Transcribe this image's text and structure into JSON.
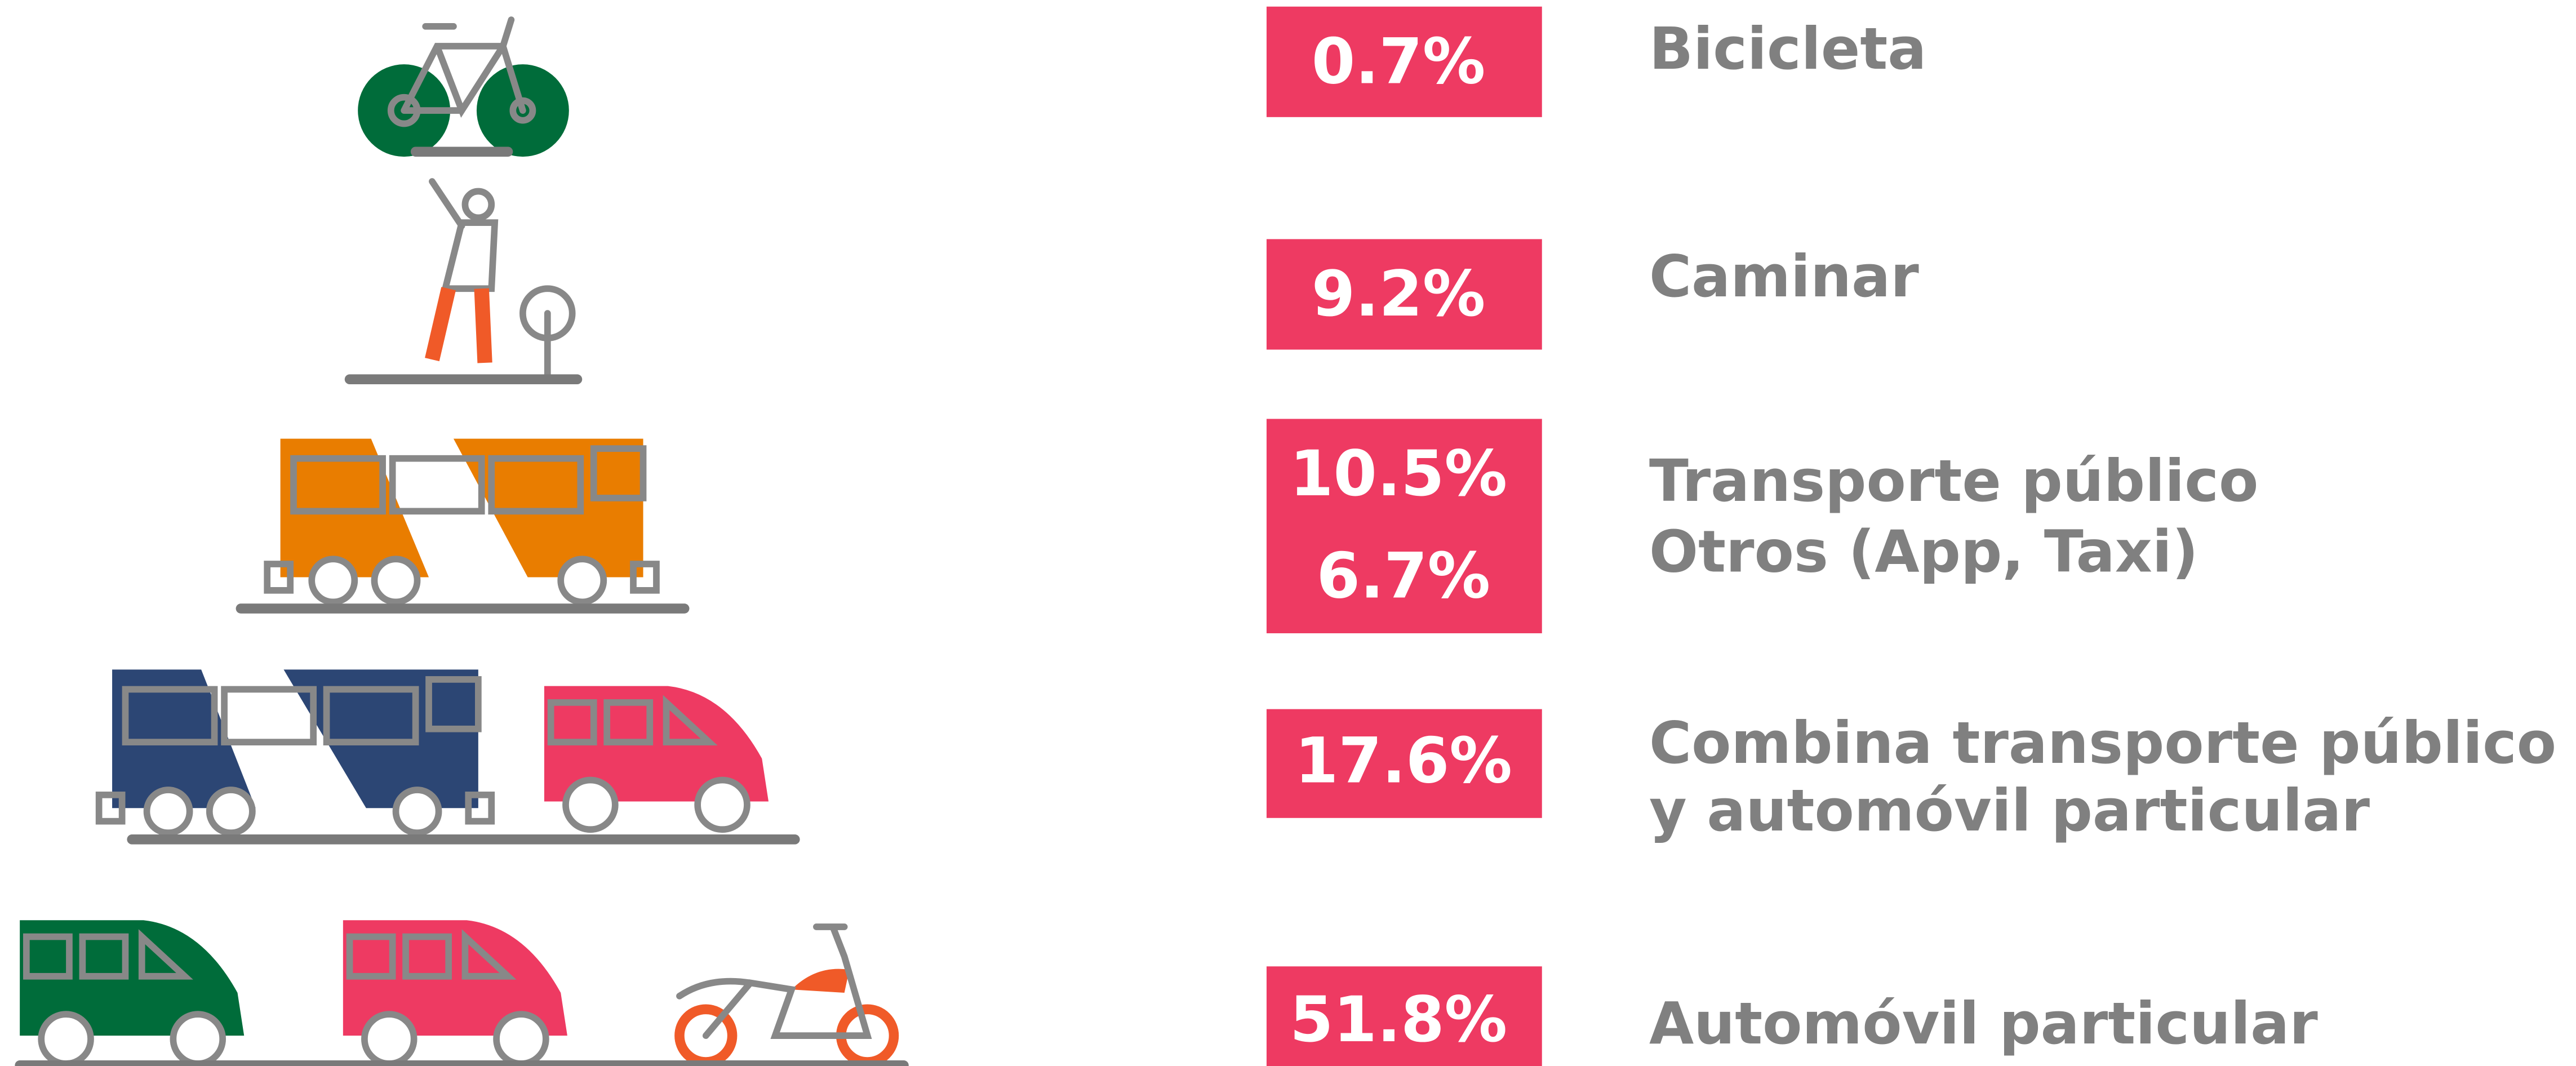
{
  "items": [
    {
      "values": [
        "0.7%"
      ],
      "labels": [
        "Bicicleta"
      ]
    },
    {
      "values": [
        "9.2%"
      ],
      "labels": [
        "Caminar"
      ]
    },
    {
      "values": [
        "10.5%",
        "6.7%"
      ],
      "labels": [
        "Transporte público",
        "Otros (App, Taxi)"
      ]
    },
    {
      "values": [
        "17.6%"
      ],
      "labels": [
        "Combina transporte público",
        "y automóvil particular"
      ]
    },
    {
      "values": [
        "51.8%"
      ],
      "labels": [
        "Automóvil particular"
      ]
    }
  ]
}
